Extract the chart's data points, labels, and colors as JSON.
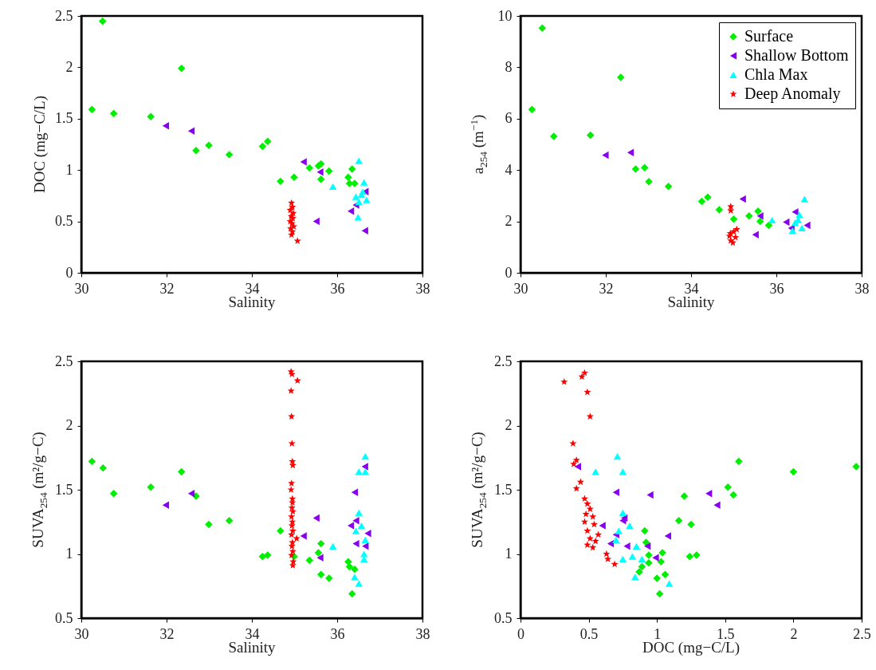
{
  "chart_data": [
    {
      "type": "scatter",
      "xlabel": "Salinity",
      "ylabel": "DOC (mg−C/L)",
      "xlim": [
        30,
        38
      ],
      "ylim": [
        0,
        2.5
      ],
      "xticks": [
        30,
        32,
        34,
        36,
        38
      ],
      "yticks": [
        0,
        0.5,
        1,
        1.5,
        2,
        2.5
      ],
      "series": [
        {
          "color": "#00ee00",
          "marker": "diamond",
          "x": [
            30.5,
            30.25,
            30.76,
            31.63,
            32.35,
            32.69,
            32.99,
            33.47,
            34.25,
            34.37,
            34.67,
            34.99,
            35.35,
            35.56,
            35.62,
            35.62,
            35.81,
            36.26,
            36.35,
            36.29,
            36.41
          ],
          "values": [
            2.45,
            1.59,
            1.55,
            1.52,
            1.99,
            1.19,
            1.24,
            1.15,
            1.23,
            1.28,
            0.89,
            0.93,
            1.02,
            1.04,
            1.06,
            0.91,
            0.99,
            0.93,
            1.01,
            0.87,
            0.87
          ]
        },
        {
          "color": "#8800ee",
          "marker": "triangle-left",
          "x": [
            31.98,
            32.58,
            35.21,
            35.6,
            35.51,
            36.32,
            36.44,
            null,
            36.65,
            36.66
          ],
          "values": [
            1.43,
            1.38,
            1.08,
            0.98,
            0.5,
            0.6,
            0.66,
            null,
            0.41,
            0.79
          ]
        },
        {
          "color": "#00ffff",
          "marker": "triangle",
          "x": [
            36.51,
            35.9,
            36.63,
            36.49,
            36.44,
            36.57,
            36.69,
            36.6,
            36.51
          ],
          "values": [
            1.09,
            0.84,
            0.88,
            0.54,
            0.74,
            0.76,
            0.71,
            0.79,
            0.69
          ]
        },
        {
          "color": "#ff0000",
          "marker": "star",
          "x": [
            34.93,
            34.95,
            34.9,
            34.97,
            34.92,
            34.96,
            34.9,
            34.94,
            34.98,
            34.91,
            34.95,
            34.93,
            35.07
          ],
          "values": [
            0.68,
            0.64,
            0.61,
            0.58,
            0.55,
            0.53,
            0.5,
            0.48,
            0.45,
            0.43,
            0.4,
            0.37,
            0.31
          ]
        }
      ]
    },
    {
      "type": "scatter",
      "xlabel": "Salinity",
      "ylabel": "a$_{254}$ (m$^{−1}$)",
      "xlim": [
        30,
        38
      ],
      "ylim": [
        0,
        10
      ],
      "xticks": [
        30,
        32,
        34,
        36,
        38
      ],
      "yticks": [
        0,
        2,
        4,
        6,
        8,
        10
      ],
      "legend": "top right",
      "series": [
        {
          "name": "Surface",
          "color": "#00ee00",
          "marker": "diamond",
          "x": [
            30.51,
            30.27,
            30.78,
            31.64,
            32.35,
            32.7,
            32.91,
            33.01,
            33.47,
            34.25,
            34.39,
            34.66,
            35.0,
            35.36,
            35.57,
            35.62,
            35.82,
            null,
            null
          ],
          "values": [
            9.53,
            6.36,
            5.31,
            5.36,
            7.61,
            4.04,
            4.09,
            3.55,
            3.36,
            2.78,
            2.94,
            2.45,
            2.09,
            2.21,
            2.4,
            2.0,
            1.85,
            null,
            null
          ]
        },
        {
          "name": "Shallow Bottom",
          "color": "#8800ee",
          "marker": "triangle-left",
          "x": [
            31.99,
            32.58,
            35.21,
            35.51,
            35.62,
            36.23,
            36.44,
            36.35,
            36.72
          ],
          "values": [
            4.58,
            4.68,
            2.87,
            1.48,
            2.21,
            1.97,
            2.37,
            1.74,
            1.85
          ]
        },
        {
          "name": "Chla Max",
          "color": "#00ffff",
          "marker": "triangle",
          "x": [
            35.9,
            36.66,
            36.54,
            36.44,
            36.6,
            36.38,
            36.51
          ],
          "values": [
            2.05,
            2.87,
            2.26,
            1.95,
            1.74,
            1.64,
            2.06
          ]
        },
        {
          "name": "Deep Anomaly",
          "color": "#ff0000",
          "marker": "star",
          "x": [
            34.93,
            34.93,
            35.07,
            34.92,
            null,
            34.98,
            34.9,
            35.04,
            35.0,
            34.93
          ],
          "values": [
            2.58,
            2.42,
            1.69,
            1.53,
            null,
            1.17,
            1.43,
            1.38,
            1.6,
            1.25
          ]
        }
      ]
    },
    {
      "type": "scatter",
      "xlabel": "Salinity",
      "ylabel": "SUVA$_{254}$ (m²/g−C)",
      "xlim": [
        30,
        38
      ],
      "ylim": [
        0.5,
        2.5
      ],
      "xticks": [
        30,
        32,
        34,
        36,
        38
      ],
      "yticks": [
        0.5,
        1,
        1.5,
        2,
        2.5
      ],
      "series": [
        {
          "color": "#00ee00",
          "marker": "diamond",
          "x": [
            30.25,
            30.51,
            30.76,
            31.63,
            32.35,
            32.69,
            32.99,
            33.47,
            34.25,
            34.37,
            34.67,
            34.99,
            35.35,
            35.56,
            35.62,
            35.62,
            35.81,
            36.26,
            36.35,
            36.29,
            36.41
          ],
          "values": [
            1.72,
            1.67,
            1.47,
            1.52,
            1.64,
            1.45,
            1.23,
            1.26,
            0.98,
            0.99,
            1.18,
            0.98,
            0.95,
            1.01,
            1.08,
            0.84,
            0.81,
            0.94,
            0.69,
            0.9,
            0.88
          ]
        },
        {
          "color": "#8800ee",
          "marker": "triangle-left",
          "x": [
            31.98,
            32.58,
            35.21,
            35.6,
            35.51,
            36.32,
            36.44,
            36.41,
            36.65,
            36.66,
            36.44,
            36.72
          ],
          "values": [
            1.38,
            1.47,
            1.14,
            0.97,
            1.28,
            1.22,
            1.26,
            1.48,
            1.68,
            1.06,
            1.08,
            1.16
          ]
        },
        {
          "color": "#00ffff",
          "marker": "triangle",
          "x": [
            35.9,
            36.66,
            36.51,
            36.66,
            36.51,
            36.57,
            36.44,
            36.66,
            36.63,
            36.63,
            36.41,
            36.51
          ],
          "values": [
            1.06,
            1.76,
            1.64,
            1.64,
            1.32,
            1.22,
            1.18,
            1.11,
            1.0,
            0.96,
            0.82,
            0.77
          ]
        },
        {
          "color": "#ff0000",
          "marker": "star",
          "x": [
            34.92,
            34.94,
            35.07,
            34.92,
            34.93,
            34.94,
            34.95,
            34.96,
            34.93,
            34.92,
            34.95,
            34.95,
            34.94,
            34.96,
            34.93,
            34.95,
            34.94,
            34.96,
            34.93,
            35.05,
            34.95,
            34.94,
            34.96,
            34.93,
            34.97,
            34.96
          ],
          "values": [
            2.42,
            2.4,
            2.35,
            2.27,
            2.07,
            1.86,
            1.72,
            1.69,
            1.55,
            1.5,
            1.43,
            1.4,
            1.36,
            1.33,
            1.29,
            1.25,
            1.22,
            1.18,
            1.15,
            1.12,
            1.09,
            1.06,
            1.02,
            0.99,
            0.94,
            0.91
          ]
        }
      ]
    },
    {
      "type": "scatter",
      "xlabel": "DOC (mg−C/L)",
      "ylabel": "SUVA$_{254}$ (m²/g−C)",
      "xlim": [
        0,
        2.5
      ],
      "ylim": [
        0.5,
        2.5
      ],
      "xticks": [
        0,
        0.5,
        1,
        1.5,
        2,
        2.5
      ],
      "yticks": [
        0.5,
        1,
        1.5,
        2,
        2.5
      ],
      "series": [
        {
          "color": "#00ee00",
          "marker": "diamond",
          "x": [
            1.6,
            2.0,
            2.46,
            1.52,
            1.56,
            1.2,
            1.16,
            1.25,
            1.24,
            1.29,
            0.91,
            0.92,
            0.94,
            0.94,
            1.04,
            1.03,
            0.89,
            0.87,
            1.0,
            1.06,
            1.02
          ],
          "values": [
            1.72,
            1.64,
            1.68,
            1.52,
            1.46,
            1.45,
            1.26,
            1.23,
            0.98,
            0.99,
            1.18,
            1.09,
            0.99,
            0.93,
            1.01,
            0.94,
            0.9,
            0.86,
            0.81,
            0.84,
            0.69
          ]
        },
        {
          "color": "#8800ee",
          "marker": "triangle-left",
          "x": [
            0.42,
            0.7,
            0.95,
            1.38,
            1.44,
            0.6,
            0.76,
            0.75,
            0.7,
            0.66,
            0.78,
            0.93,
            0.99,
            1.08
          ],
          "values": [
            1.68,
            1.48,
            1.46,
            1.47,
            1.38,
            1.22,
            1.28,
            1.26,
            1.15,
            1.08,
            1.06,
            1.06,
            0.97,
            1.14
          ]
        },
        {
          "color": "#00ffff",
          "marker": "triangle",
          "x": [
            0.71,
            0.55,
            0.75,
            0.75,
            0.8,
            0.72,
            0.7,
            0.85,
            0.82,
            0.75,
            0.89,
            0.84,
            1.09
          ],
          "values": [
            1.76,
            1.64,
            1.64,
            1.32,
            1.22,
            1.18,
            1.11,
            1.06,
            0.98,
            0.96,
            0.96,
            0.82,
            0.77
          ]
        },
        {
          "color": "#ff0000",
          "marker": "star",
          "x": [
            0.32,
            0.45,
            0.47,
            0.49,
            0.51,
            0.385,
            0.41,
            0.39,
            0.44,
            0.41,
            0.47,
            0.49,
            0.51,
            0.48,
            0.53,
            0.47,
            0.54,
            0.49,
            0.57,
            0.51,
            0.55,
            0.49,
            0.53,
            0.63,
            0.64,
            0.69
          ],
          "values": [
            2.34,
            2.38,
            2.41,
            2.26,
            2.07,
            1.86,
            1.73,
            1.7,
            1.56,
            1.51,
            1.43,
            1.39,
            1.35,
            1.31,
            1.29,
            1.25,
            1.23,
            1.18,
            1.15,
            1.12,
            1.1,
            1.07,
            1.05,
            1.0,
            0.96,
            0.92
          ]
        }
      ]
    }
  ]
}
